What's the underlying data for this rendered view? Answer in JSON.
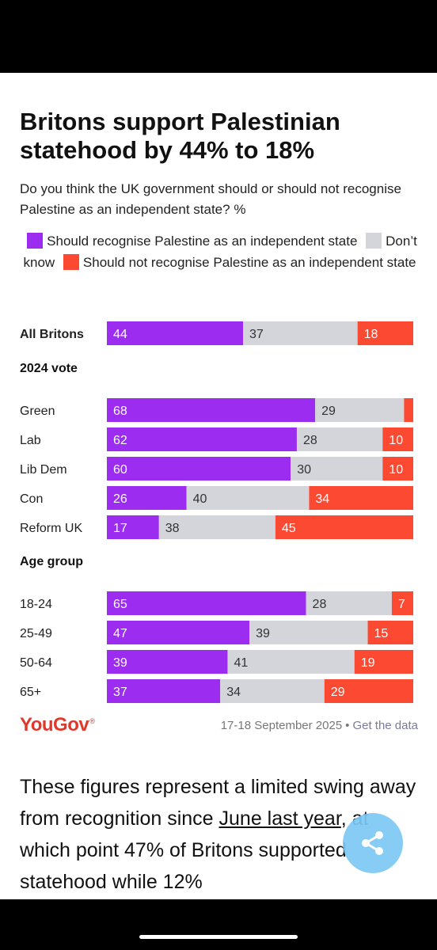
{
  "chart_data": {
    "type": "bar",
    "stacked": true,
    "orientation": "horizontal",
    "title": "Britons support Palestinian statehood by 44% to 18%",
    "subtitle": "Do you think the UK government should or should not recognise Palestine as an independent state? %",
    "series": [
      {
        "name": "Should recognise Palestine as an independent state",
        "color": "#9b2cf0"
      },
      {
        "name": "Don’t know",
        "color": "#d4d4db"
      },
      {
        "name": "Should not recognise Palestine as an independent state",
        "color": "#fc4a32"
      }
    ],
    "groups": [
      {
        "heading": "",
        "rows": [
          {
            "label": "All Britons",
            "values": [
              44,
              37,
              18
            ],
            "labels": [
              "44",
              "37",
              "18"
            ],
            "bold": true
          }
        ]
      },
      {
        "heading": "2024 vote",
        "rows": [
          {
            "label": "Green",
            "values": [
              68,
              29,
              3
            ],
            "labels": [
              "68",
              "29",
              ""
            ]
          },
          {
            "label": "Lab",
            "values": [
              62,
              28,
              10
            ],
            "labels": [
              "62",
              "28",
              "10"
            ]
          },
          {
            "label": "Lib Dem",
            "values": [
              60,
              30,
              10
            ],
            "labels": [
              "60",
              "30",
              "10"
            ]
          },
          {
            "label": "Con",
            "values": [
              26,
              40,
              34
            ],
            "labels": [
              "26",
              "40",
              "34"
            ]
          },
          {
            "label": "Reform UK",
            "values": [
              17,
              38,
              45
            ],
            "labels": [
              "17",
              "38",
              "45"
            ]
          }
        ]
      },
      {
        "heading": "Age group",
        "rows": [
          {
            "label": "18-24",
            "values": [
              65,
              28,
              7
            ],
            "labels": [
              "65",
              "28",
              "7"
            ]
          },
          {
            "label": "25-49",
            "values": [
              47,
              39,
              15
            ],
            "labels": [
              "47",
              "39",
              "15"
            ]
          },
          {
            "label": "50-64",
            "values": [
              39,
              41,
              19
            ],
            "labels": [
              "39",
              "41",
              "19"
            ]
          },
          {
            "label": "65+",
            "values": [
              37,
              34,
              29
            ],
            "labels": [
              "37",
              "34",
              "29"
            ]
          }
        ]
      }
    ]
  },
  "legend": {
    "recognise": "Should recognise Palestine as an independent state",
    "dont_know": "Don’t know",
    "not_recognise": "Should not recognise Palestine as an independent state"
  },
  "footer": {
    "brand": "YouGov",
    "brand_mark": "®",
    "date": "17-18 September 2025",
    "separator": "•",
    "link": "Get the data"
  },
  "article": {
    "text_before": "These figures represent a limited swing away from recognition since ",
    "link_text": "June last year",
    "text_after": ", at which point 47% of Britons supported statehood while 12%"
  },
  "share": {
    "icon": "share-icon"
  }
}
